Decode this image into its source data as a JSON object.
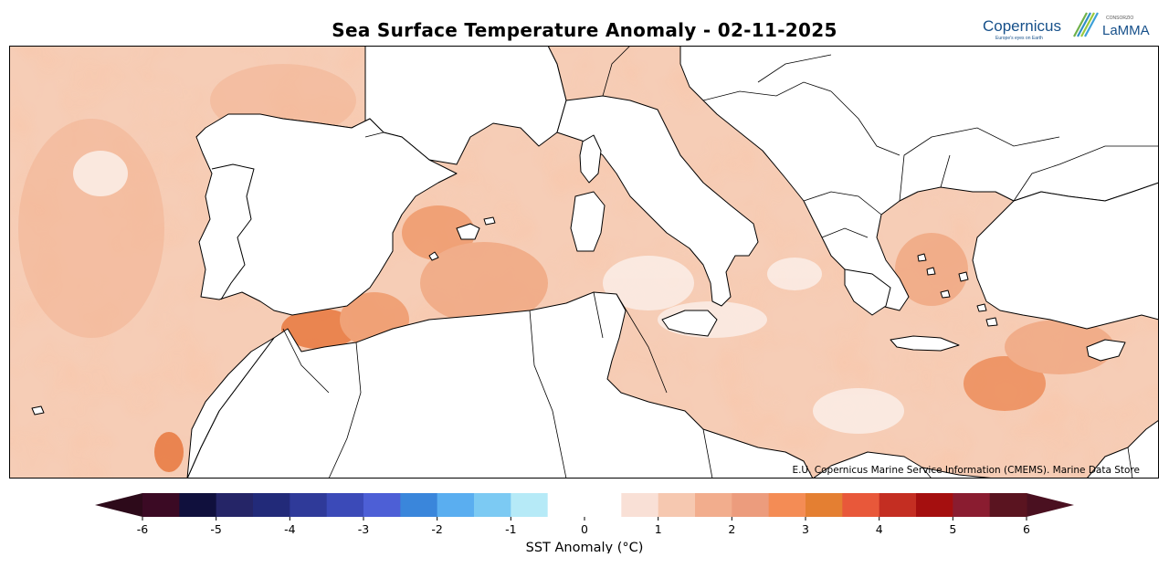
{
  "title": "Sea Surface Temperature Anomaly - 02-11-2025",
  "credit": "E.U. Copernicus Marine Service Information (CMEMS). Marine Data Store",
  "logos": {
    "copernicus_name": "Copernicus",
    "copernicus_tagline": "Europe's eyes on Earth",
    "lamma_small": "CONSORZIO",
    "lamma_name": "LaMMA"
  },
  "colorbar": {
    "label": "SST Anomaly (°C)",
    "min": -6,
    "max": 6,
    "step": 0.5,
    "ticks": [
      "-6",
      "-5",
      "-4",
      "-3",
      "-2",
      "-1",
      "0",
      "1",
      "2",
      "3",
      "4",
      "5",
      "6"
    ],
    "tick_values": [
      -6,
      -5,
      -4,
      -3,
      -2,
      -1,
      0,
      1,
      2,
      3,
      4,
      5,
      6
    ],
    "lower_extend_color": "#2d0a1a",
    "upper_extend_color": "#4a1020",
    "colors": [
      "#3b0a24",
      "#10103d",
      "#252567",
      "#222a79",
      "#2f3a99",
      "#3b4ab8",
      "#4d5fd6",
      "#3a86db",
      "#5aaef0",
      "#7ccaf3",
      "#b6eaf7",
      "#ffffff",
      "#ffffff",
      "#f9e0d6",
      "#f6c8b0",
      "#f2ad8d",
      "#ec9c7d",
      "#f48c55",
      "#e47f32",
      "#e8583a",
      "#c42e22",
      "#a50f0f",
      "#8a1c30",
      "#5a1420"
    ]
  },
  "colors": {
    "land": "#ffffff",
    "coast": "#000000",
    "anomaly_light": "#f6cdb6",
    "anomaly_mid": "#f0a882",
    "anomaly_strong": "#e8783e",
    "anomaly_cool": "#7ccaf3"
  }
}
